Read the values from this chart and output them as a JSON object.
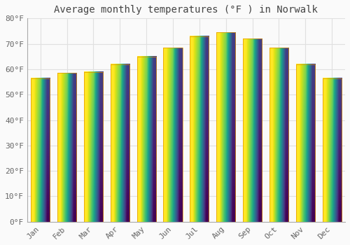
{
  "title": "Average monthly temperatures (°F ) in Norwalk",
  "months": [
    "Jan",
    "Feb",
    "Mar",
    "Apr",
    "May",
    "Jun",
    "Jul",
    "Aug",
    "Sep",
    "Oct",
    "Nov",
    "Dec"
  ],
  "values": [
    56.5,
    58.5,
    59.0,
    62.0,
    65.0,
    68.5,
    73.0,
    74.5,
    72.0,
    68.5,
    62.0,
    56.5
  ],
  "bar_color_top": "#FFD54F",
  "bar_color_bottom": "#FFA726",
  "bar_edge_color": "#E69500",
  "ylim": [
    0,
    80
  ],
  "ytick_step": 10,
  "background_color": "#FAFAFA",
  "plot_bg_color": "#FAFAFA",
  "grid_color": "#E0E0E0",
  "title_fontsize": 10,
  "tick_fontsize": 8,
  "title_color": "#444444",
  "tick_color": "#666666"
}
